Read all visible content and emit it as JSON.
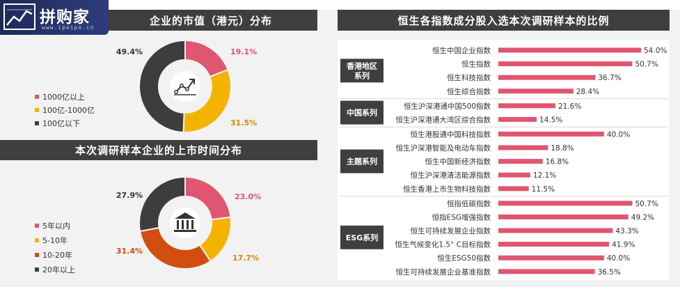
{
  "logo": {
    "text": "拼购家",
    "url": "www.ipoipo.cn"
  },
  "left_top": {
    "title": "企业的市值（港元）分布",
    "legend": [
      {
        "label": "1000亿以上",
        "color": "#e05670"
      },
      {
        "label": "100亿-1000亿",
        "color": "#f5b301"
      },
      {
        "label": "100亿以下",
        "color": "#3d3d3d"
      }
    ],
    "icon": "line-chart-icon"
  },
  "left_bottom": {
    "title": "本次调研样本企业的上市时间分布",
    "legend": [
      {
        "label": "5年以内",
        "color": "#e05670"
      },
      {
        "label": "5-10年",
        "color": "#f5b301"
      },
      {
        "label": "10-20年",
        "color": "#d14d10"
      },
      {
        "label": "20年以上",
        "color": "#3d3d3d"
      }
    ],
    "icon": "bank-building-icon"
  },
  "right": {
    "title": "恒生各指数成分股入选本次调研样本的比例",
    "bar_color": "#e05670",
    "label_bg": "#3f3f3f"
  },
  "chart_data": [
    {
      "type": "pie",
      "title": "",
      "categories": [
        "1000亿以上",
        "100亿-1000亿",
        "100亿以下"
      ],
      "values": [
        19.1,
        31.5,
        49.4
      ],
      "value_labels": [
        "19.1%",
        "31.5%",
        "49.4%"
      ],
      "colors": [
        "#e05670",
        "#f5b301",
        "#3d3d3d"
      ]
    },
    {
      "type": "pie",
      "title": "本次调研样本企业的上市时间分布",
      "categories": [
        "5年以内",
        "5-10年",
        "10-20年",
        "20年以上"
      ],
      "values": [
        23.0,
        17.7,
        31.4,
        27.9
      ],
      "value_labels": [
        "23.0%",
        "17.7%",
        "31.4%",
        "27.9%"
      ],
      "colors": [
        "#e05670",
        "#f5b301",
        "#d14d10",
        "#3d3d3d"
      ]
    },
    {
      "type": "bar",
      "orientation": "horizontal",
      "title": "恒生各指数成分股入选本次调研样本的比例",
      "groups": [
        {
          "name": "香港地区系列",
          "items": [
            {
              "label": "恒生中国企业指数",
              "value": 54.0,
              "value_label": "54.0%"
            },
            {
              "label": "恒生指数",
              "value": 50.7,
              "value_label": "50.7%"
            },
            {
              "label": "恒生科技指数",
              "value": 36.7,
              "value_label": "36.7%"
            },
            {
              "label": "恒生综合指数",
              "value": 28.4,
              "value_label": "28.4%"
            }
          ]
        },
        {
          "name": "中国系列",
          "items": [
            {
              "label": "恒生沪深港通中国500指数",
              "value": 21.6,
              "value_label": "21.6%"
            },
            {
              "label": "恒生沪深港通大湾区综合指数",
              "value": 14.5,
              "value_label": "14.5%"
            }
          ]
        },
        {
          "name": "主题系列",
          "items": [
            {
              "label": "恒生港股通中国科技指数",
              "value": 40.0,
              "value_label": "40.0%"
            },
            {
              "label": "恒生沪深港智能及电动车指数",
              "value": 18.8,
              "value_label": "18.8%"
            },
            {
              "label": "恒生中国新经济指数",
              "value": 16.8,
              "value_label": "16.8%"
            },
            {
              "label": "恒生沪深港清洁能源指数",
              "value": 12.1,
              "value_label": "12.1%"
            },
            {
              "label": "恒生香港上市生物科技指数",
              "value": 11.5,
              "value_label": "11.5%"
            }
          ]
        },
        {
          "name": "ESG系列",
          "items": [
            {
              "label": "恒指低碳指数",
              "value": 50.7,
              "value_label": "50.7%"
            },
            {
              "label": "恒指ESG增强指数",
              "value": 49.2,
              "value_label": "49.2%"
            },
            {
              "label": "恒生可持续发展企业指数",
              "value": 43.3,
              "value_label": "43.3%"
            },
            {
              "label": "恒生气候变化1.5° C目标指数",
              "value": 41.9,
              "value_label": "41.9%"
            },
            {
              "label": "恒生ESG50指数",
              "value": 40.0,
              "value_label": "40.0%"
            },
            {
              "label": "恒生可持续发展企业基准指数",
              "value": 36.5,
              "value_label": "36.5%"
            }
          ]
        }
      ]
    }
  ]
}
